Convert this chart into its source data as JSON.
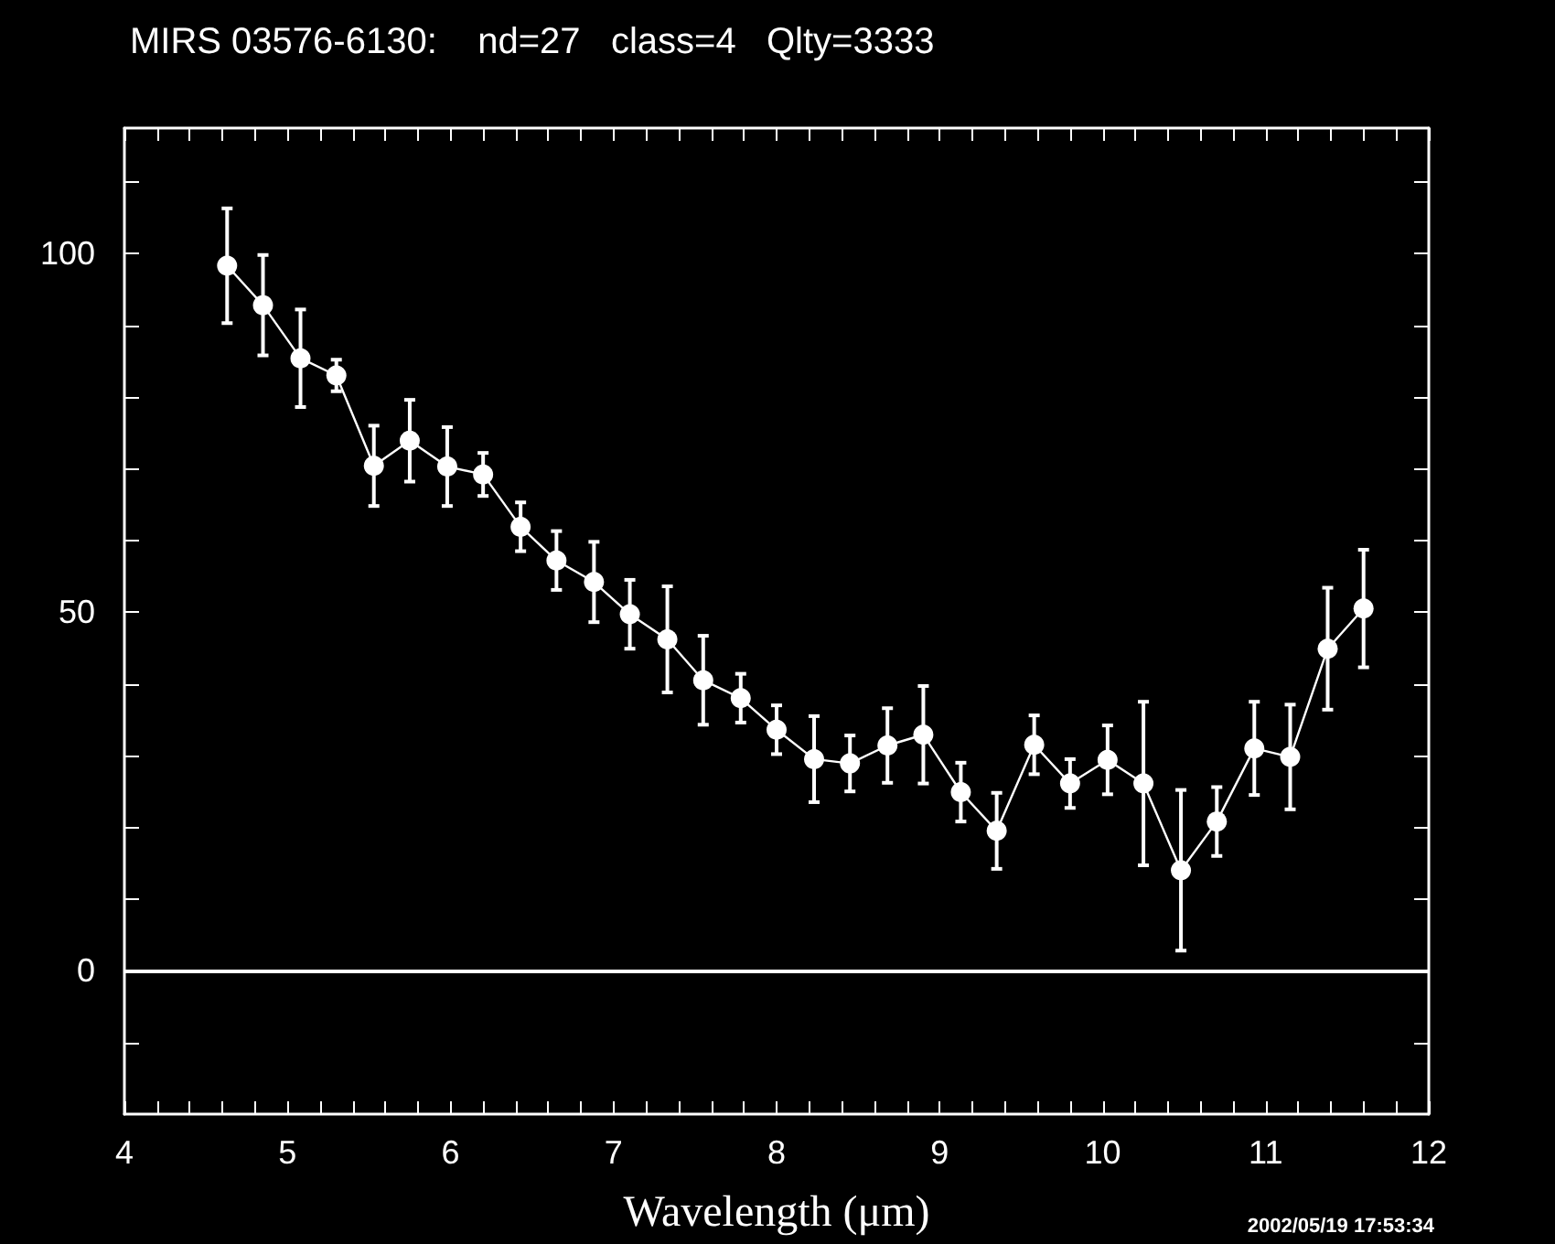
{
  "chart_data": {
    "type": "line",
    "title": "MIRS 03576-6130:    nd=27   class=4   Qlty=3333",
    "xlabel": "Wavelength (μm)",
    "x": [
      4.63,
      4.85,
      5.08,
      5.3,
      5.53,
      5.75,
      5.98,
      6.2,
      6.43,
      6.65,
      6.88,
      7.1,
      7.33,
      7.55,
      7.78,
      8.0,
      8.23,
      8.45,
      8.68,
      8.9,
      9.13,
      9.35,
      9.58,
      9.8,
      10.03,
      10.25,
      10.48,
      10.7,
      10.93,
      11.15,
      11.38,
      11.6
    ],
    "series": [
      {
        "color": "#ffffff",
        "values": [
          98.3,
          92.8,
          85.4,
          83.0,
          70.4,
          73.9,
          70.3,
          69.2,
          61.9,
          57.2,
          54.2,
          49.7,
          46.2,
          40.5,
          38.0,
          33.6,
          29.5,
          28.9,
          31.4,
          32.9,
          24.9,
          19.5,
          31.5,
          26.1,
          29.4,
          26.1,
          14.0,
          20.8,
          31.0,
          29.8,
          44.9,
          50.5
        ],
        "errors": [
          8,
          7,
          6.8,
          2.2,
          5.6,
          5.7,
          5.5,
          3,
          3.4,
          4.1,
          5.6,
          4.8,
          7.4,
          6.2,
          3.4,
          3.4,
          6,
          3.9,
          5.2,
          6.8,
          4.1,
          5.3,
          4.1,
          3.4,
          4.8,
          11.4,
          11.2,
          4.8,
          6.5,
          7.3,
          8.5,
          8.2
        ]
      }
    ],
    "marker": "circle",
    "line_style": "solid",
    "xlim": [
      4,
      12
    ],
    "ylim": [
      -20,
      117.5
    ],
    "xticks": [
      4,
      {
        "value": 4.2,
        "label": null
      },
      {
        "value": 4.4,
        "label": null
      },
      {
        "value": 4.6,
        "label": null
      },
      {
        "value": 4.8,
        "label": null
      },
      5,
      {
        "value": 5.2,
        "label": null
      },
      {
        "value": 5.4,
        "label": null
      },
      {
        "value": 5.6,
        "label": null
      },
      {
        "value": 5.8,
        "label": null
      },
      6,
      {
        "value": 6.2,
        "label": null
      },
      {
        "value": 6.4,
        "label": null
      },
      {
        "value": 6.6,
        "label": null
      },
      {
        "value": 6.8,
        "label": null
      },
      7,
      {
        "value": 7.2,
        "label": null
      },
      {
        "value": 7.4,
        "label": null
      },
      {
        "value": 7.6,
        "label": null
      },
      {
        "value": 7.8,
        "label": null
      },
      8,
      {
        "value": 8.2,
        "label": null
      },
      {
        "value": 8.4,
        "label": null
      },
      {
        "value": 8.6,
        "label": null
      },
      {
        "value": 8.8,
        "label": null
      },
      9,
      {
        "value": 9.2,
        "label": null
      },
      {
        "value": 9.4,
        "label": null
      },
      {
        "value": 9.6,
        "label": null
      },
      {
        "value": 9.8,
        "label": null
      },
      10,
      {
        "value": 10.2,
        "label": null
      },
      {
        "value": 10.4,
        "label": null
      },
      {
        "value": 10.6,
        "label": null
      },
      {
        "value": 10.8,
        "label": null
      },
      11,
      {
        "value": 11.2,
        "label": null
      },
      {
        "value": 11.4,
        "label": null
      },
      {
        "value": 11.6,
        "label": null
      },
      {
        "value": 11.8,
        "label": null
      },
      12
    ],
    "yticks": [
      {
        "value": -10,
        "label": null
      },
      0,
      {
        "value": 10,
        "label": null
      },
      {
        "value": 20,
        "label": null
      },
      {
        "value": 30,
        "label": null
      },
      {
        "value": 40,
        "label": null
      },
      50,
      {
        "value": 60,
        "label": null
      },
      {
        "value": 70,
        "label": null
      },
      {
        "value": 80,
        "label": null
      },
      {
        "value": 90,
        "label": null
      },
      100,
      {
        "value": 110,
        "label": null
      }
    ],
    "ref_lines": [
      {
        "axis": "y",
        "value": 0,
        "color": "#ffffff"
      }
    ],
    "annotations": [
      "2002/05/19 17:53:34"
    ]
  }
}
